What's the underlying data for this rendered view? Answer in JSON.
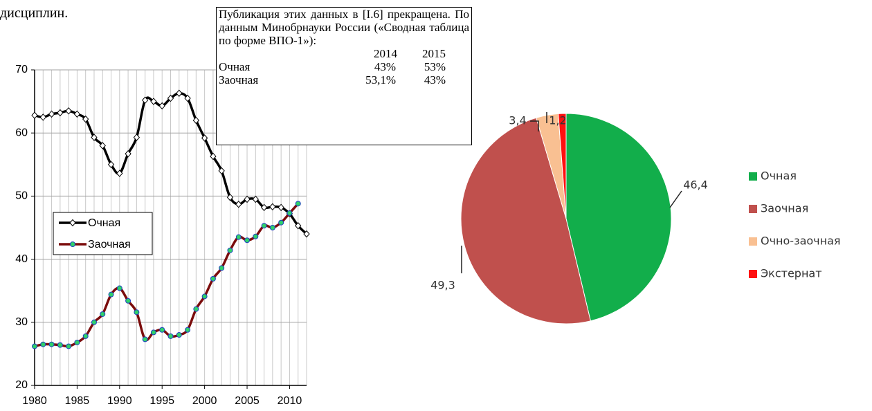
{
  "fragment": "дисциплин.",
  "note": {
    "text": "Публикация этих данных в [I.6] прекращена. По данным Минобрнауки России («Сводная таблица по форме ВПО-1»):",
    "table": {
      "header": [
        "2014",
        "2015"
      ],
      "rows": [
        [
          "Очная",
          "43%",
          "53%"
        ],
        [
          "Заочная",
          "53,1%",
          "43%"
        ]
      ]
    }
  },
  "chart_data": [
    {
      "type": "line",
      "x": [
        1980,
        1981,
        1982,
        1983,
        1984,
        1985,
        1986,
        1987,
        1988,
        1989,
        1990,
        1991,
        1992,
        1993,
        1994,
        1995,
        1996,
        1997,
        1998,
        1999,
        2000,
        2001,
        2002,
        2003,
        2004,
        2005,
        2006,
        2007,
        2008,
        2009,
        2010,
        2011,
        2012
      ],
      "series": [
        {
          "name": "Очная",
          "color": "#000000",
          "values": [
            62.8,
            62.5,
            63.0,
            63.2,
            63.5,
            63.0,
            62.2,
            59.3,
            58.0,
            55.0,
            53.6,
            56.7,
            59.3,
            65.2,
            65.0,
            64.3,
            65.5,
            66.3,
            65.5,
            62.0,
            59.2,
            56.3,
            54.0,
            49.8,
            48.7,
            49.5,
            49.5,
            48.2,
            48.3,
            48.2,
            47.2,
            45.3,
            44.0
          ]
        },
        {
          "name": "Заочная",
          "color": "#7b0c0c",
          "values": [
            26.2,
            26.5,
            26.5,
            26.4,
            26.2,
            26.8,
            27.8,
            30.0,
            31.3,
            34.4,
            35.4,
            33.4,
            31.6,
            27.3,
            28.4,
            28.8,
            27.8,
            28.0,
            28.8,
            32.1,
            34.1,
            36.9,
            38.6,
            41.4,
            43.5,
            43.0,
            43.6,
            45.3,
            45.0,
            45.8,
            47.3,
            48.8,
            null
          ]
        }
      ],
      "xlim": [
        1980,
        2012
      ],
      "xticks": [
        1980,
        1985,
        1990,
        1995,
        2000,
        2005,
        2010
      ],
      "ylim": [
        20,
        70
      ],
      "yticks": [
        20,
        30,
        40,
        50,
        60,
        70
      ],
      "grid": true,
      "legend": "left"
    },
    {
      "type": "pie",
      "categories": [
        "Очная",
        "Заочная",
        "Очно-заочная",
        "Экстернат"
      ],
      "values": [
        46.4,
        49.3,
        3.4,
        1.2
      ],
      "value_labels": [
        "46,4",
        "49,3",
        "3,4",
        "1,2"
      ],
      "colors": [
        "#12ae4b",
        "#c0504d",
        "#f9c092",
        "#ff1010"
      ],
      "legend": "right"
    }
  ]
}
